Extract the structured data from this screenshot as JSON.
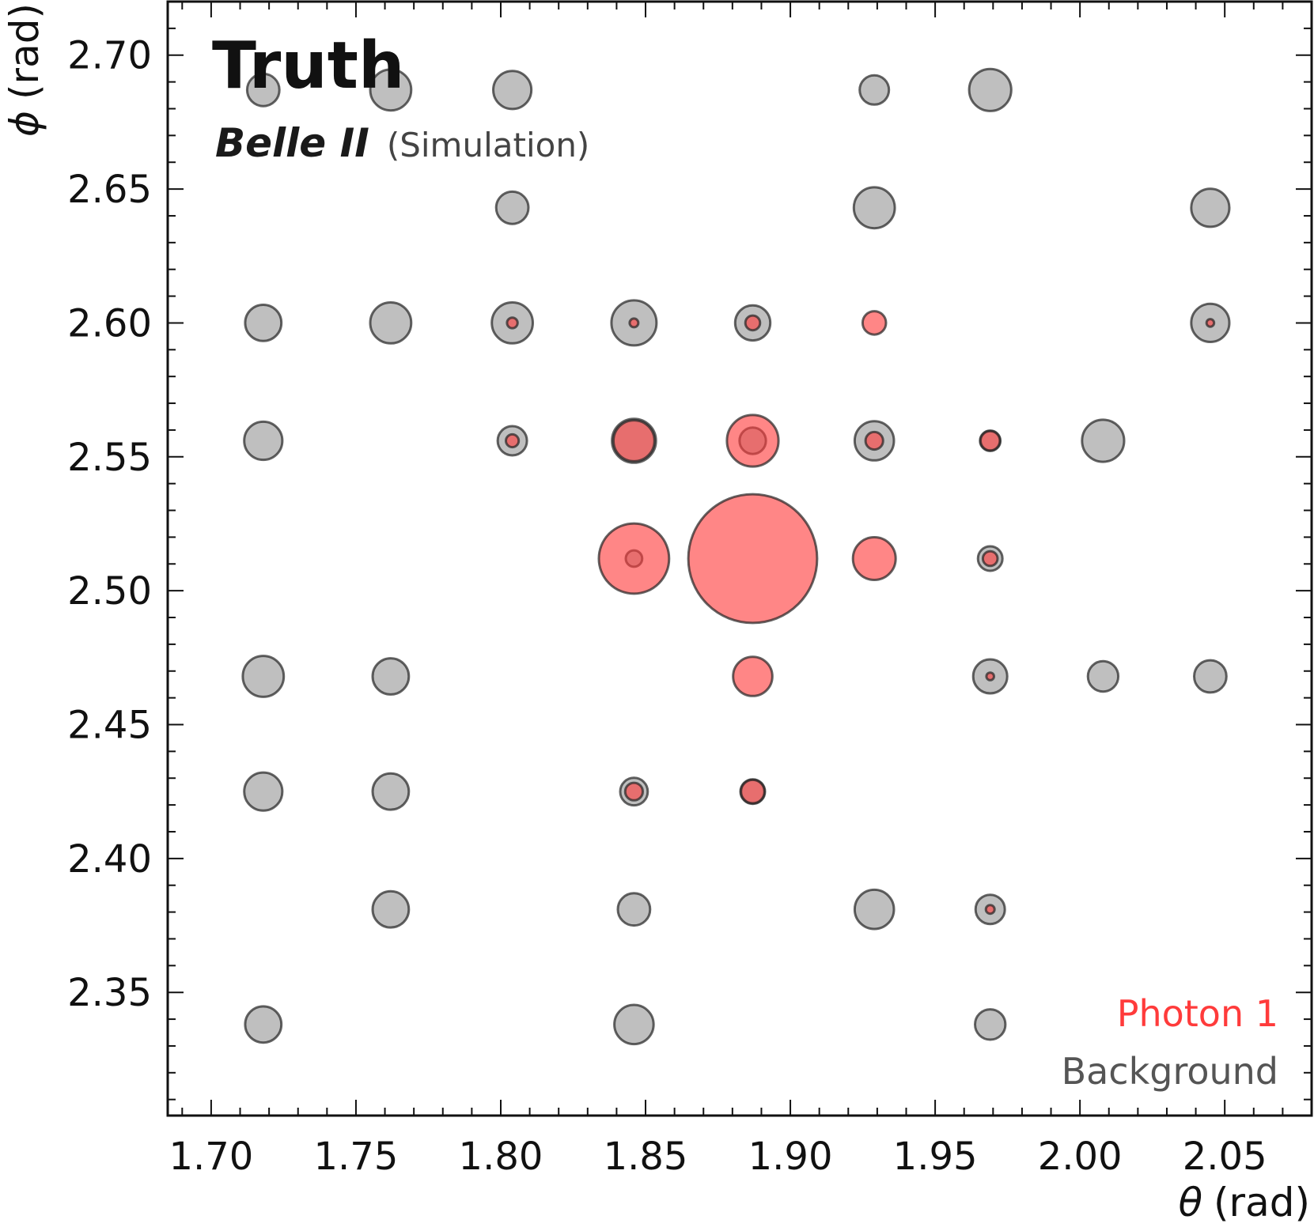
{
  "chart_data": {
    "type": "scatter",
    "title": "Truth",
    "experiment": "Belle II",
    "subtitle": "(Simulation)",
    "xlabel": {
      "symbol": "θ",
      "unit": "(rad)"
    },
    "ylabel": {
      "symbol": "ϕ",
      "unit": "(rad)"
    },
    "xlim": [
      1.685,
      2.08
    ],
    "ylim": [
      2.304,
      2.72
    ],
    "xticks": [
      "1.70",
      "1.75",
      "1.80",
      "1.85",
      "1.90",
      "1.95",
      "2.00",
      "2.05"
    ],
    "yticks": [
      "2.35",
      "2.40",
      "2.45",
      "2.50",
      "2.55",
      "2.60",
      "2.65",
      "2.70"
    ],
    "grid": false,
    "legend_position": "bottom-right",
    "colors": {
      "photon": "#ff3b3b",
      "background": "#808080",
      "edge": "#222222"
    },
    "series": [
      {
        "name": "Background",
        "color": "#808080",
        "points": [
          [
            1.718,
            2.687,
            0.55
          ],
          [
            1.762,
            2.687,
            0.7
          ],
          [
            1.804,
            2.687,
            0.65
          ],
          [
            1.929,
            2.687,
            0.5
          ],
          [
            1.969,
            2.687,
            0.72
          ],
          [
            1.804,
            2.643,
            0.55
          ],
          [
            1.929,
            2.643,
            0.7
          ],
          [
            2.045,
            2.643,
            0.65
          ],
          [
            1.718,
            2.6,
            0.62
          ],
          [
            1.762,
            2.6,
            0.7
          ],
          [
            1.804,
            2.6,
            0.7
          ],
          [
            1.846,
            2.6,
            0.77
          ],
          [
            1.887,
            2.6,
            0.6
          ],
          [
            2.045,
            2.6,
            0.65
          ],
          [
            1.718,
            2.556,
            0.65
          ],
          [
            1.804,
            2.556,
            0.5
          ],
          [
            1.846,
            2.556,
            0.75
          ],
          [
            1.887,
            2.556,
            0.45
          ],
          [
            1.929,
            2.556,
            0.67
          ],
          [
            1.969,
            2.556,
            0.35
          ],
          [
            2.008,
            2.556,
            0.72
          ],
          [
            1.846,
            2.512,
            0.28
          ],
          [
            1.969,
            2.512,
            0.42
          ],
          [
            1.718,
            2.468,
            0.7
          ],
          [
            1.762,
            2.468,
            0.62
          ],
          [
            1.969,
            2.468,
            0.58
          ],
          [
            2.008,
            2.468,
            0.52
          ],
          [
            2.045,
            2.468,
            0.55
          ],
          [
            1.718,
            2.425,
            0.65
          ],
          [
            1.762,
            2.425,
            0.62
          ],
          [
            1.846,
            2.425,
            0.47
          ],
          [
            1.887,
            2.425,
            0.42
          ],
          [
            1.762,
            2.381,
            0.62
          ],
          [
            1.846,
            2.381,
            0.55
          ],
          [
            1.929,
            2.381,
            0.67
          ],
          [
            1.969,
            2.381,
            0.5
          ],
          [
            1.718,
            2.338,
            0.62
          ],
          [
            1.846,
            2.338,
            0.67
          ],
          [
            1.969,
            2.338,
            0.52
          ]
        ]
      },
      {
        "name": "Photon 1",
        "color": "#ff3b3b",
        "points": [
          [
            1.804,
            2.6,
            0.18
          ],
          [
            1.846,
            2.6,
            0.15
          ],
          [
            1.887,
            2.6,
            0.25
          ],
          [
            1.929,
            2.6,
            0.4
          ],
          [
            2.045,
            2.6,
            0.13
          ],
          [
            1.804,
            2.556,
            0.22
          ],
          [
            1.846,
            2.556,
            0.7
          ],
          [
            1.887,
            2.556,
            0.88
          ],
          [
            1.929,
            2.556,
            0.3
          ],
          [
            1.969,
            2.556,
            0.33
          ],
          [
            1.846,
            2.512,
            1.2
          ],
          [
            1.887,
            2.512,
            2.2
          ],
          [
            1.929,
            2.512,
            0.73
          ],
          [
            1.969,
            2.512,
            0.25
          ],
          [
            1.887,
            2.468,
            0.67
          ],
          [
            1.969,
            2.468,
            0.13
          ],
          [
            1.846,
            2.425,
            0.3
          ],
          [
            1.887,
            2.425,
            0.4
          ],
          [
            1.969,
            2.381,
            0.15
          ]
        ]
      }
    ]
  },
  "legend": [
    {
      "label": "Photon 1",
      "color": "#ff3b3b"
    },
    {
      "label": "Background",
      "color": "#555555"
    }
  ]
}
